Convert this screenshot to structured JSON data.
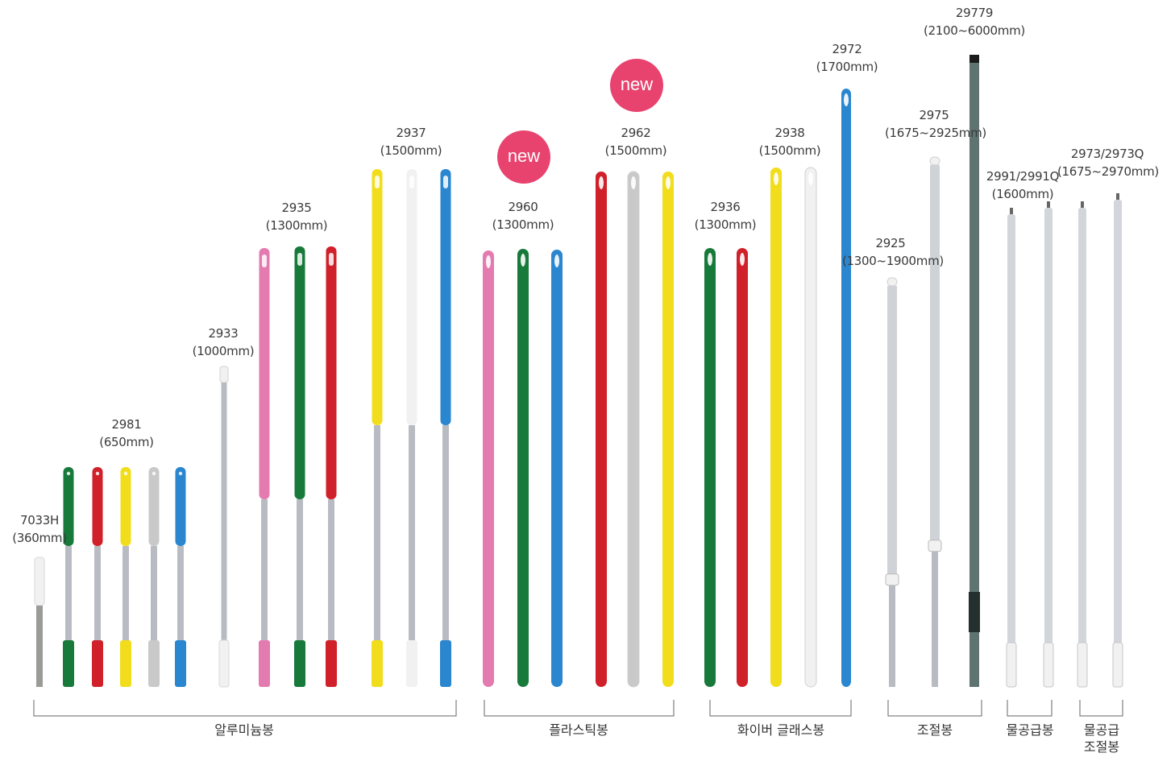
{
  "colors": {
    "background": "#ffffff",
    "green": "#17793a",
    "red": "#d0202a",
    "yellow": "#f2dd1c",
    "grey": "#c9c9c9",
    "white": "#f1f1f1",
    "blue": "#2a86cf",
    "pink": "#e47bb0",
    "aluminium": "#b8bcc2",
    "badge": "#e8436e",
    "bracket": "#666666"
  },
  "badges": {
    "new1": "new",
    "new2": "new"
  },
  "labels": {
    "p7033h": {
      "code": "7033H",
      "size": "(360mm)"
    },
    "p2981": {
      "code": "2981",
      "size": "(650mm)"
    },
    "p2933": {
      "code": "2933",
      "size": "(1000mm)"
    },
    "p2935": {
      "code": "2935",
      "size": "(1300mm)"
    },
    "p2937": {
      "code": "2937",
      "size": "(1500mm)"
    },
    "p2960": {
      "code": "2960",
      "size": "(1300mm)"
    },
    "p2962": {
      "code": "2962",
      "size": "(1500mm)"
    },
    "p2936": {
      "code": "2936",
      "size": "(1300mm)"
    },
    "p2938": {
      "code": "2938",
      "size": "(1500mm)"
    },
    "p2972": {
      "code": "2972",
      "size": "(1700mm)"
    },
    "p2925": {
      "code": "2925",
      "size": "(1300~1900mm)"
    },
    "p2975": {
      "code": "2975",
      "size": "(1675~2925mm)"
    },
    "p29779": {
      "code": "29779",
      "size": "(2100~6000mm)"
    },
    "p2991": {
      "code": "2991/2991Q",
      "size": "(1600mm)"
    },
    "p2973": {
      "code": "2973/2973Q",
      "size": "(1675~2970mm)"
    }
  },
  "groups": {
    "aluminium": "알루미늄봉",
    "plastic": "플라스틱봉",
    "fiberglass": "화이버 글래스봉",
    "telescopic": "조절봉",
    "waterfed": "물공급봉",
    "waterfed_tele_1": "물공급",
    "waterfed_tele_2": "조절봉"
  },
  "handles": [
    {
      "id": "7033H",
      "color": "white",
      "material": "aluminium"
    },
    {
      "id": "2981",
      "color": "green",
      "material": "aluminium"
    },
    {
      "id": "2981",
      "color": "red",
      "material": "aluminium"
    },
    {
      "id": "2981",
      "color": "yellow",
      "material": "aluminium"
    },
    {
      "id": "2981",
      "color": "grey",
      "material": "aluminium"
    },
    {
      "id": "2981",
      "color": "blue",
      "material": "aluminium"
    },
    {
      "id": "2933",
      "color": "white",
      "material": "aluminium"
    },
    {
      "id": "2935",
      "color": "pink",
      "material": "aluminium"
    },
    {
      "id": "2935",
      "color": "green",
      "material": "aluminium"
    },
    {
      "id": "2935",
      "color": "red",
      "material": "aluminium"
    },
    {
      "id": "2937",
      "color": "yellow",
      "material": "aluminium"
    },
    {
      "id": "2937",
      "color": "white",
      "material": "aluminium"
    },
    {
      "id": "2937",
      "color": "blue",
      "material": "aluminium"
    },
    {
      "id": "2960",
      "color": "pink",
      "material": "plastic"
    },
    {
      "id": "2960",
      "color": "green",
      "material": "plastic"
    },
    {
      "id": "2960",
      "color": "blue",
      "material": "plastic"
    },
    {
      "id": "2962",
      "color": "red",
      "material": "plastic"
    },
    {
      "id": "2962",
      "color": "grey",
      "material": "plastic"
    },
    {
      "id": "2962",
      "color": "yellow",
      "material": "plastic"
    },
    {
      "id": "2936",
      "color": "green",
      "material": "fiberglass"
    },
    {
      "id": "2936",
      "color": "red",
      "material": "fiberglass"
    },
    {
      "id": "2938",
      "color": "yellow",
      "material": "fiberglass"
    },
    {
      "id": "2938",
      "color": "white",
      "material": "fiberglass"
    },
    {
      "id": "2972",
      "color": "blue",
      "material": "fiberglass"
    },
    {
      "id": "2925",
      "color": "white",
      "material": "telescopic"
    },
    {
      "id": "2975",
      "color": "grey",
      "material": "telescopic"
    },
    {
      "id": "29779",
      "color": "dark-grey",
      "material": "telescopic"
    },
    {
      "id": "2991",
      "color": "grey",
      "material": "waterfed"
    },
    {
      "id": "2991Q",
      "color": "grey",
      "material": "waterfed"
    },
    {
      "id": "2973",
      "color": "grey",
      "material": "waterfed-telescopic"
    },
    {
      "id": "2973Q",
      "color": "grey",
      "material": "waterfed-telescopic"
    }
  ]
}
